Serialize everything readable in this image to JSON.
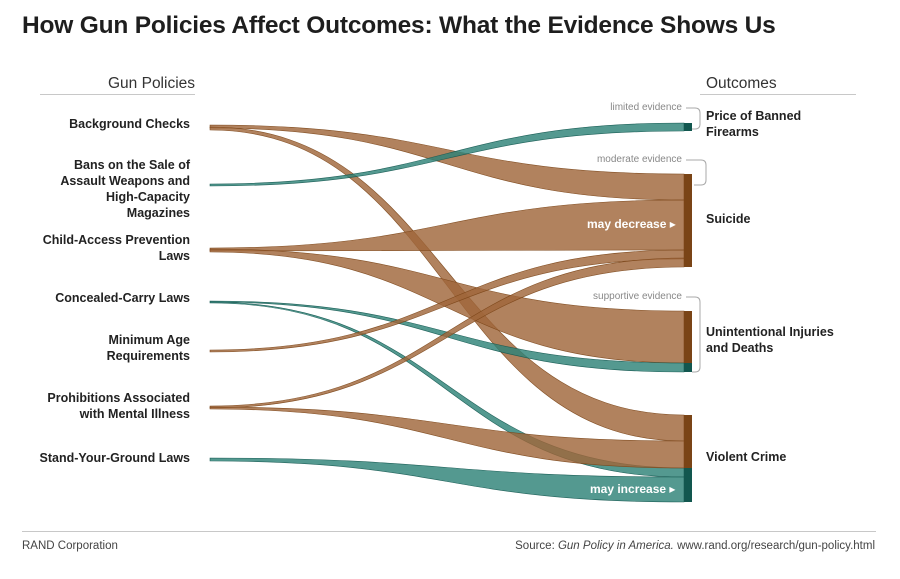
{
  "title": "How Gun Policies Affect Outcomes: What the Evidence Shows Us",
  "columns": {
    "policies": "Gun Policies",
    "outcomes": "Outcomes"
  },
  "policies": [
    "Background Checks",
    "Bans on the Sale of\nAssault Weapons and\nHigh-Capacity\nMagazines",
    "Child-Access Prevention\nLaws",
    "Concealed-Carry Laws",
    "Minimum Age\nRequirements",
    "Prohibitions Associated\nwith Mental Illness",
    "Stand-Your-Ground Laws"
  ],
  "outcomes": [
    "Price of Banned\nFirearms",
    "Suicide",
    "Unintentional Injuries\nand Deaths",
    "Violent Crime"
  ],
  "evidence_levels": {
    "limited": "limited evidence",
    "moderate": "moderate evidence",
    "supportive": "supportive evidence"
  },
  "flow_labels": {
    "decrease": "may decrease ▸",
    "increase": "may increase ▸"
  },
  "colors": {
    "decrease_fill": "#a0663a",
    "decrease_bar": "#7a4416",
    "increase_fill": "#2e8278",
    "increase_bar": "#12574f",
    "text": "#222222",
    "muted": "#888888"
  },
  "flows": [
    {
      "policy": "Background Checks",
      "outcome": "Suicide",
      "effect": "decrease"
    },
    {
      "policy": "Background Checks",
      "outcome": "Violent Crime",
      "effect": "decrease"
    },
    {
      "policy": "Bans on the Sale of Assault Weapons and High-Capacity Magazines",
      "outcome": "Price of Banned Firearms",
      "effect": "increase"
    },
    {
      "policy": "Child-Access Prevention Laws",
      "outcome": "Suicide",
      "effect": "decrease"
    },
    {
      "policy": "Child-Access Prevention Laws",
      "outcome": "Unintentional Injuries and Deaths",
      "effect": "decrease"
    },
    {
      "policy": "Concealed-Carry Laws",
      "outcome": "Unintentional Injuries and Deaths",
      "effect": "increase"
    },
    {
      "policy": "Concealed-Carry Laws",
      "outcome": "Violent Crime",
      "effect": "increase"
    },
    {
      "policy": "Minimum Age Requirements",
      "outcome": "Suicide",
      "effect": "decrease"
    },
    {
      "policy": "Prohibitions Associated with Mental Illness",
      "outcome": "Suicide",
      "effect": "decrease"
    },
    {
      "policy": "Prohibitions Associated with Mental Illness",
      "outcome": "Violent Crime",
      "effect": "decrease"
    },
    {
      "policy": "Stand-Your-Ground Laws",
      "outcome": "Violent Crime",
      "effect": "increase"
    }
  ],
  "footer": {
    "org": "RAND Corporation",
    "source_prefix": "Source: ",
    "source_publication": "Gun Policy in America.",
    "source_url": " www.rand.org/research/gun-policy.html"
  }
}
